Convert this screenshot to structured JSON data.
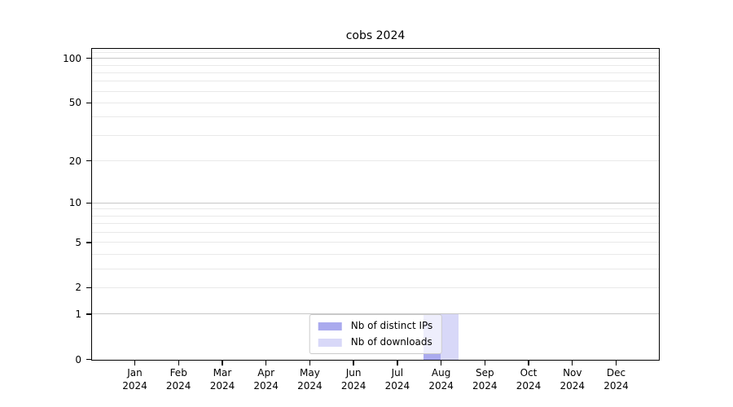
{
  "chart_data": {
    "type": "bar",
    "title": "cobs 2024",
    "categories": [
      "Jan 2024",
      "Feb 2024",
      "Mar 2024",
      "Apr 2024",
      "May 2024",
      "Jun 2024",
      "Jul 2024",
      "Aug 2024",
      "Sep 2024",
      "Oct 2024",
      "Nov 2024",
      "Dec 2024"
    ],
    "series": [
      {
        "name": "Nb of distinct IPs",
        "color": "#aaaaee",
        "values": [
          0,
          0,
          0,
          0,
          0,
          0,
          0,
          1,
          0,
          0,
          0,
          0
        ]
      },
      {
        "name": "Nb of downloads",
        "color": "#d8d8f8",
        "values": [
          0,
          0,
          0,
          0,
          0,
          0,
          0,
          1,
          0,
          0,
          0,
          0
        ]
      }
    ],
    "xlabel": "",
    "ylabel": "",
    "yscale": "log1p",
    "yticks": [
      0,
      1,
      2,
      5,
      10,
      20,
      50,
      100
    ],
    "ylim": [
      0,
      115
    ],
    "grid": {
      "on": true,
      "major_lines": [
        1,
        10,
        100
      ],
      "minor_lines": [
        2,
        3,
        4,
        5,
        6,
        7,
        8,
        9,
        20,
        30,
        40,
        50,
        60,
        70,
        80,
        90,
        110
      ]
    },
    "legend": {
      "position": "lower center"
    }
  },
  "colors": {
    "grid_major": "#c6c6c6",
    "grid_minor": "#e9e9e9",
    "spine": "#000000"
  }
}
